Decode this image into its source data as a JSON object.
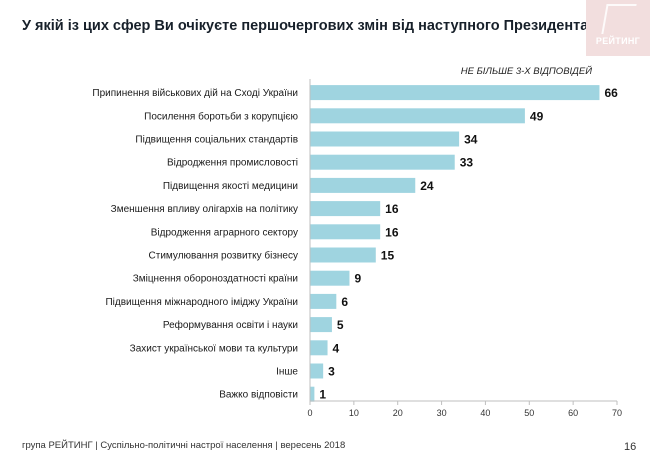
{
  "title": "У якій із цих сфер Ви очікуєте першочергових змін від наступного Президента України?",
  "logo_text": "РЕЙТИНГ",
  "note": "НЕ БІЛЬШЕ 3-Х ВІДПОВІДЕЙ",
  "footer": "група РЕЙТИНГ | Суспільно-політичні настрої населення | вересень 2018",
  "page_number": "16",
  "colors": {
    "bar": "#9fd4e0",
    "axis": "#bfbfbf",
    "logo_bg": "#f2dede"
  },
  "chart_data": {
    "type": "bar",
    "orientation": "horizontal",
    "categories": [
      "Припинення військових дій на Сході України",
      "Посилення боротьби з корупцією",
      "Підвищення соціальних стандартів",
      "Відродження промисловості",
      "Підвищення якості медицини",
      "Зменшення впливу олігархів на політику",
      "Відродження аграрного сектору",
      "Стимулювання розвитку бізнесу",
      "Зміцнення обороноздатності країни",
      "Підвищення міжнародного іміджу України",
      "Реформування освіти і науки",
      "Захист української мови та культури",
      "Інше",
      "Важко відповісти"
    ],
    "values": [
      66,
      49,
      34,
      33,
      24,
      16,
      16,
      15,
      9,
      6,
      5,
      4,
      3,
      1
    ],
    "xlim": [
      0,
      70
    ],
    "xticks": [
      0,
      10,
      20,
      30,
      40,
      50,
      60,
      70
    ],
    "grid": false
  }
}
